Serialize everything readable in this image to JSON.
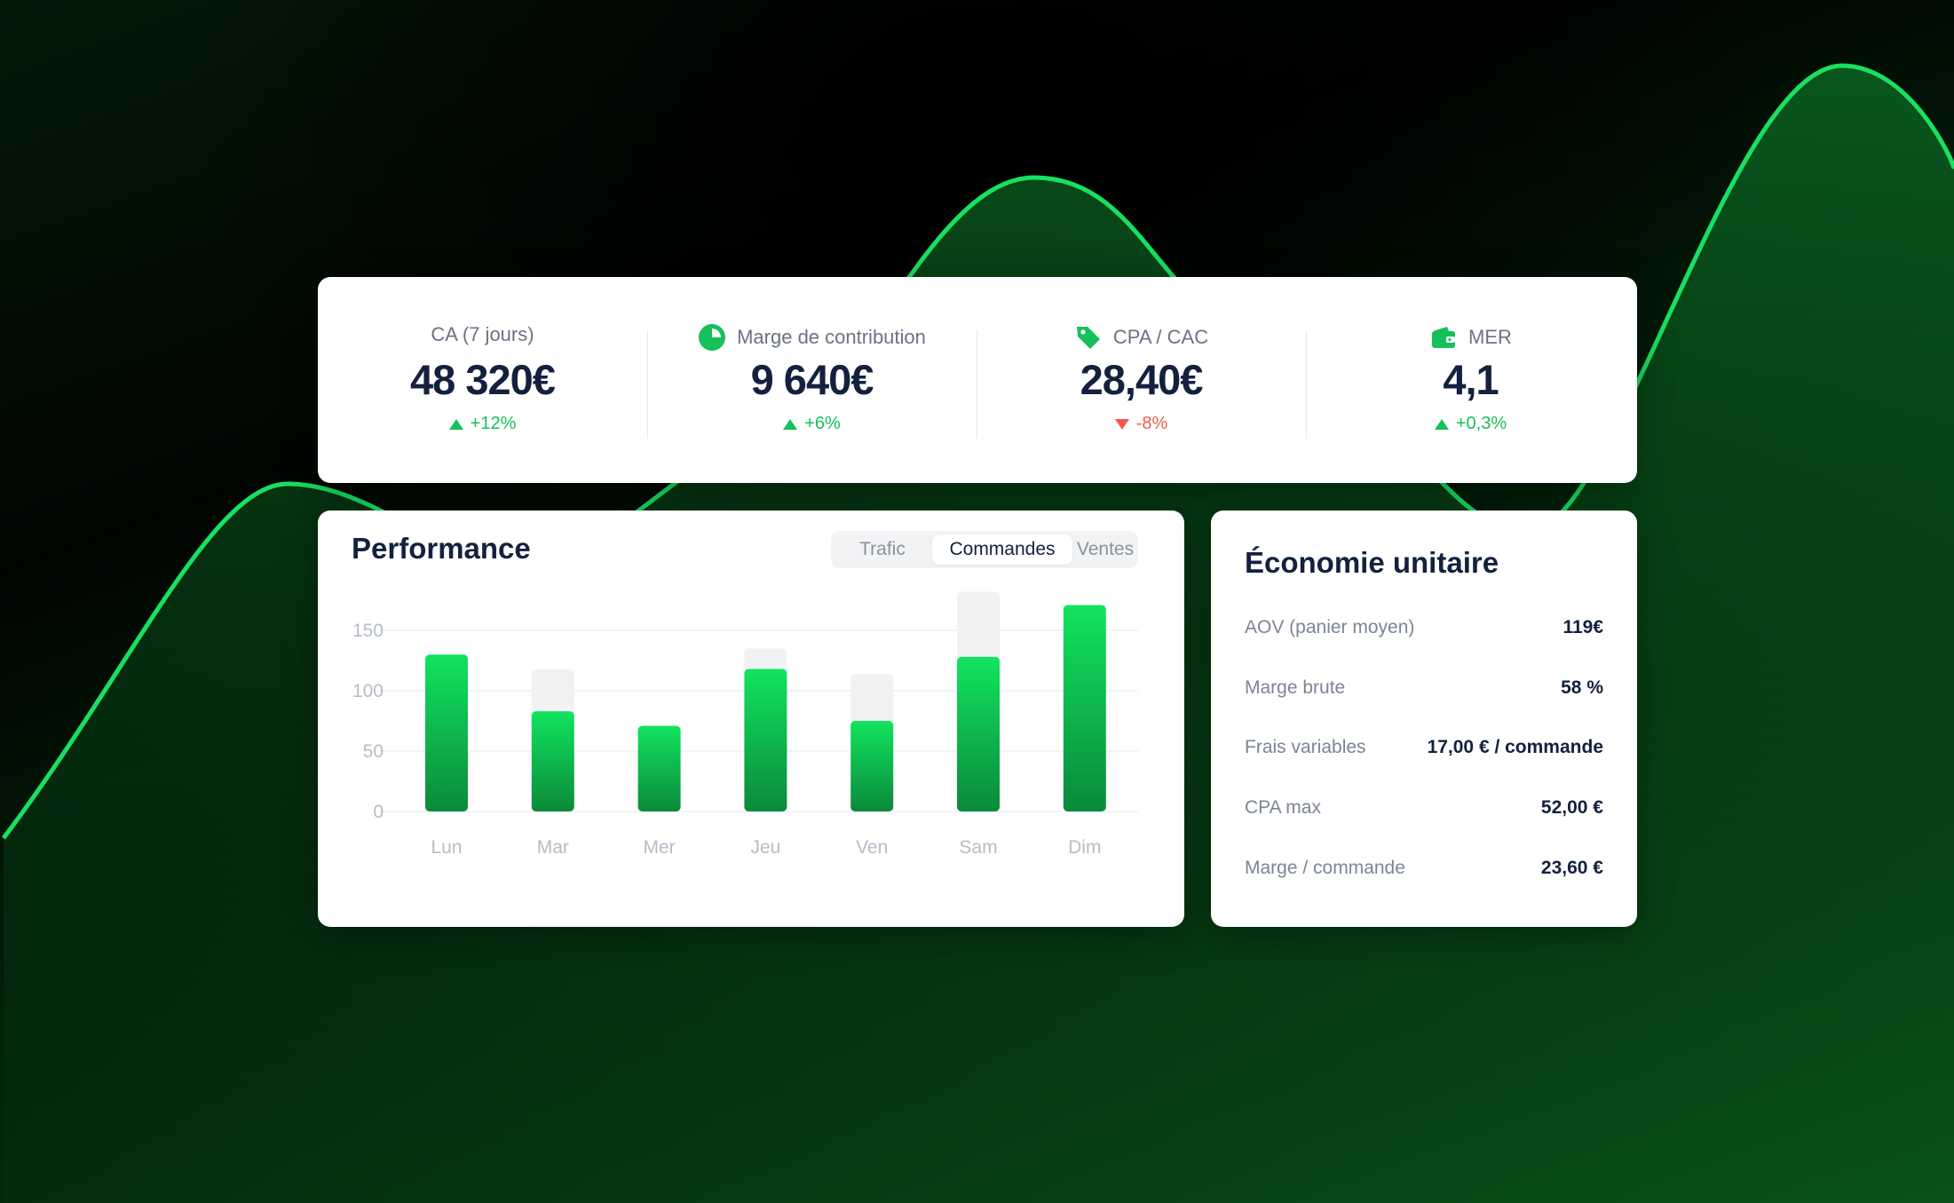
{
  "colors": {
    "accent_green": "#16c05a",
    "curve_green": "#18e060",
    "negative_red": "#ef5a4c",
    "text_dark": "#13213f",
    "text_muted": "#6b7280"
  },
  "kpis": [
    {
      "label": "CA (7 jours)",
      "icon": "",
      "value": "48 320€",
      "change": "+12%",
      "direction": "up"
    },
    {
      "label": "Marge de contribution",
      "icon": "pie-chart-icon",
      "value": "9 640€",
      "change": "+6%",
      "direction": "up"
    },
    {
      "label": "CPA / CAC",
      "icon": "price-tag-icon",
      "value": "28,40€",
      "change": "-8%",
      "direction": "down"
    },
    {
      "label": "MER",
      "icon": "wallet-icon",
      "value": "4,1",
      "change": "+0,3%",
      "direction": "up"
    }
  ],
  "performance": {
    "title": "Performance",
    "tabs": [
      {
        "label": "Trafic",
        "active": false
      },
      {
        "label": "Commandes",
        "active": true
      },
      {
        "label": "Ventes",
        "active": false
      }
    ]
  },
  "chart_data": {
    "type": "bar",
    "categories": [
      "Lun",
      "Mar",
      "Mer",
      "Jeu",
      "Ven",
      "Sam",
      "Dim"
    ],
    "series": [
      {
        "role": "background",
        "values": [
          null,
          118,
          null,
          135,
          114,
          182,
          null
        ]
      },
      {
        "role": "foreground",
        "values": [
          130,
          83,
          71,
          118,
          75,
          128,
          171
        ]
      }
    ],
    "yticks": [
      0,
      50,
      100,
      150
    ],
    "ylim": [
      0,
      182
    ],
    "grid": true,
    "legend": "none"
  },
  "economy": {
    "title": "Économie unitaire",
    "rows": [
      {
        "label": "AOV (panier moyen)",
        "value": "119€"
      },
      {
        "label": "Marge brute",
        "value": "58 %"
      },
      {
        "label": "Frais variables",
        "value": "17,00 € / commande"
      },
      {
        "label": "CPA max",
        "value": "52,00 €"
      },
      {
        "label": "Marge / commande",
        "value": "23,60 €"
      }
    ]
  }
}
